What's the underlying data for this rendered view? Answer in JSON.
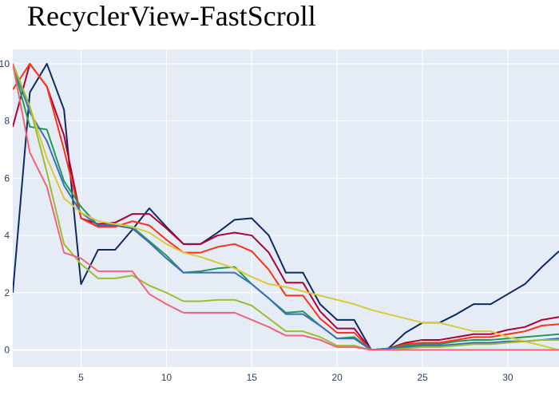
{
  "chart_data": {
    "type": "line",
    "title": "RecyclerView-FastScroll",
    "xlabel": "",
    "ylabel": "",
    "xlim": [
      1,
      33
    ],
    "ylim": [
      -0.6,
      10.5
    ],
    "x_ticks": [
      5,
      10,
      15,
      20,
      25,
      30
    ],
    "y_ticks": [
      0,
      2,
      4,
      6,
      8,
      10
    ],
    "grid": true,
    "legend": "none",
    "plot_background": "#e5ecf6",
    "grid_color": "#ffffff",
    "x": [
      1,
      2,
      3,
      4,
      5,
      6,
      7,
      8,
      9,
      10,
      11,
      12,
      13,
      14,
      15,
      16,
      17,
      18,
      19,
      20,
      21,
      22,
      23,
      24,
      25,
      26,
      27,
      28,
      29,
      30,
      31,
      32,
      33
    ],
    "series": [
      {
        "color": "#0d2a63",
        "values": [
          2.0,
          9.0,
          10.0,
          8.4,
          2.3,
          3.5,
          3.5,
          4.2,
          4.95,
          4.3,
          3.7,
          3.7,
          4.1,
          4.55,
          4.6,
          4.0,
          2.7,
          2.7,
          1.6,
          1.05,
          1.05,
          0.0,
          0.05,
          0.6,
          0.95,
          0.95,
          1.25,
          1.6,
          1.6,
          1.95,
          2.3,
          2.9,
          3.45
        ]
      },
      {
        "color": "#af0038",
        "values": [
          7.8,
          10.0,
          9.2,
          7.5,
          4.6,
          4.4,
          4.45,
          4.75,
          4.75,
          4.25,
          3.7,
          3.7,
          4.0,
          4.1,
          4.0,
          3.4,
          2.35,
          2.35,
          1.35,
          0.75,
          0.75,
          0.0,
          0.05,
          0.25,
          0.35,
          0.35,
          0.45,
          0.55,
          0.55,
          0.7,
          0.8,
          1.05,
          1.15
        ]
      },
      {
        "color": "#fd3216",
        "values": [
          9.1,
          10.0,
          9.2,
          7.0,
          4.6,
          4.3,
          4.3,
          4.5,
          4.35,
          3.85,
          3.4,
          3.4,
          3.6,
          3.7,
          3.45,
          2.8,
          1.9,
          1.9,
          1.1,
          0.6,
          0.6,
          0.0,
          0.05,
          0.2,
          0.25,
          0.25,
          0.35,
          0.45,
          0.45,
          0.55,
          0.65,
          0.85,
          0.9
        ]
      },
      {
        "color": "#1f9c50",
        "values": [
          10.0,
          7.8,
          7.7,
          5.9,
          5.0,
          4.35,
          4.4,
          4.3,
          3.8,
          3.3,
          2.7,
          2.75,
          2.85,
          2.9,
          2.3,
          1.8,
          1.3,
          1.35,
          0.85,
          0.4,
          0.45,
          0.0,
          0.05,
          0.15,
          0.2,
          0.2,
          0.3,
          0.35,
          0.35,
          0.4,
          0.45,
          0.5,
          0.55
        ]
      },
      {
        "color": "#3b6dbf",
        "values": [
          10.0,
          8.3,
          7.3,
          5.75,
          4.8,
          4.35,
          4.35,
          4.25,
          3.75,
          3.2,
          2.7,
          2.7,
          2.7,
          2.7,
          2.3,
          1.8,
          1.25,
          1.25,
          0.85,
          0.4,
          0.4,
          0.0,
          0.05,
          0.1,
          0.15,
          0.15,
          0.2,
          0.25,
          0.25,
          0.3,
          0.3,
          0.35,
          0.4
        ]
      },
      {
        "color": "#d9c93b",
        "values": [
          10.0,
          8.5,
          6.7,
          5.3,
          4.8,
          4.5,
          4.4,
          4.3,
          4.1,
          3.7,
          3.4,
          3.25,
          3.05,
          2.85,
          2.55,
          2.3,
          2.2,
          2.05,
          1.9,
          1.75,
          1.6,
          1.4,
          1.25,
          1.1,
          0.95,
          0.95,
          0.8,
          0.65,
          0.65,
          0.45,
          0.3,
          0.15,
          0.0
        ]
      },
      {
        "color": "#9dbd2c",
        "values": [
          10.0,
          8.5,
          6.2,
          3.7,
          3.0,
          2.5,
          2.5,
          2.6,
          2.25,
          2.0,
          1.7,
          1.7,
          1.75,
          1.75,
          1.55,
          1.1,
          0.65,
          0.65,
          0.45,
          0.15,
          0.15,
          0.0,
          0.0,
          0.05,
          0.1,
          0.1,
          0.15,
          0.2,
          0.2,
          0.25,
          0.3,
          0.35,
          0.35
        ]
      },
      {
        "color": "#f0647a",
        "values": [
          10.0,
          6.9,
          5.7,
          3.4,
          3.2,
          2.75,
          2.75,
          2.75,
          1.95,
          1.6,
          1.3,
          1.3,
          1.3,
          1.3,
          1.05,
          0.8,
          0.5,
          0.5,
          0.35,
          0.1,
          0.1,
          0.0,
          0.0,
          0.0,
          0.0,
          0.0,
          0.0,
          0.0,
          0.0,
          0.0,
          0.0,
          0.0,
          0.0
        ]
      }
    ]
  }
}
